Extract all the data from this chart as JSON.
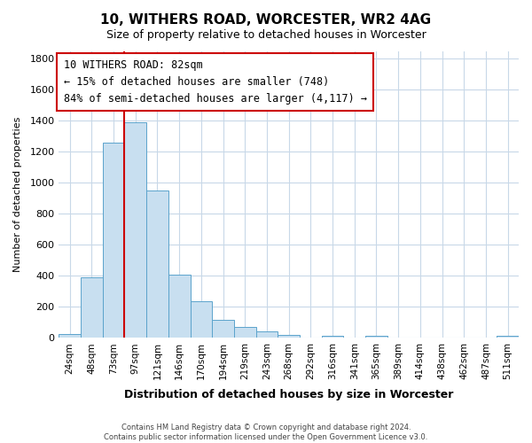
{
  "title": "10, WITHERS ROAD, WORCESTER, WR2 4AG",
  "subtitle": "Size of property relative to detached houses in Worcester",
  "xlabel": "Distribution of detached houses by size in Worcester",
  "ylabel": "Number of detached properties",
  "bar_labels": [
    "24sqm",
    "48sqm",
    "73sqm",
    "97sqm",
    "121sqm",
    "146sqm",
    "170sqm",
    "194sqm",
    "219sqm",
    "243sqm",
    "268sqm",
    "292sqm",
    "316sqm",
    "341sqm",
    "365sqm",
    "389sqm",
    "414sqm",
    "438sqm",
    "462sqm",
    "487sqm",
    "511sqm"
  ],
  "bar_values": [
    25,
    390,
    1260,
    1390,
    950,
    410,
    235,
    115,
    70,
    45,
    20,
    0,
    15,
    0,
    15,
    0,
    0,
    0,
    0,
    0,
    15
  ],
  "bar_color": "#c8dff0",
  "bar_edge_color": "#5ba3cc",
  "vline_color": "#cc0000",
  "vline_x_index": 2.5,
  "annotation_title": "10 WITHERS ROAD: 82sqm",
  "annotation_line1": "← 15% of detached houses are smaller (748)",
  "annotation_line2": "84% of semi-detached houses are larger (4,117) →",
  "annotation_box_color": "white",
  "annotation_box_edge": "#cc0000",
  "ylim": [
    0,
    1850
  ],
  "yticks": [
    0,
    200,
    400,
    600,
    800,
    1000,
    1200,
    1400,
    1600,
    1800
  ],
  "footer1": "Contains HM Land Registry data © Crown copyright and database right 2024.",
  "footer2": "Contains public sector information licensed under the Open Government Licence v3.0.",
  "background_color": "#ffffff",
  "grid_color": "#c8d8e8"
}
